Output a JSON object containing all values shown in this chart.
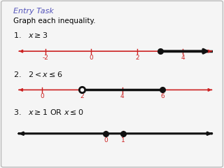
{
  "title": "Entry Task",
  "subtitle": "Graph each inequality.",
  "label1": "1.   $x \\geq 3$",
  "label2": "2.   $2 < x \\leq 6$",
  "label3": "3.   $x \\geq 1$ OR $x \\leq 0$",
  "title_color": "#5555bb",
  "text_color": "#000000",
  "line_color_red": "#cc2222",
  "line_color_black": "#111111",
  "bg_color": "#f5f5f5",
  "border_color": "#bbbbbb",
  "nl1": {
    "xmin": -3,
    "xmax": 5,
    "ticks": [
      -2,
      0,
      2,
      4
    ],
    "dot": 3
  },
  "nl2": {
    "xmin": -1,
    "xmax": 8,
    "ticks": [
      0,
      2,
      4,
      6
    ],
    "dot_open": 2,
    "dot_closed": 6
  },
  "nl3": {
    "xmin": -5,
    "xmax": 6,
    "ticks": [
      0,
      1
    ],
    "dot0": 0,
    "dot1": 1
  }
}
